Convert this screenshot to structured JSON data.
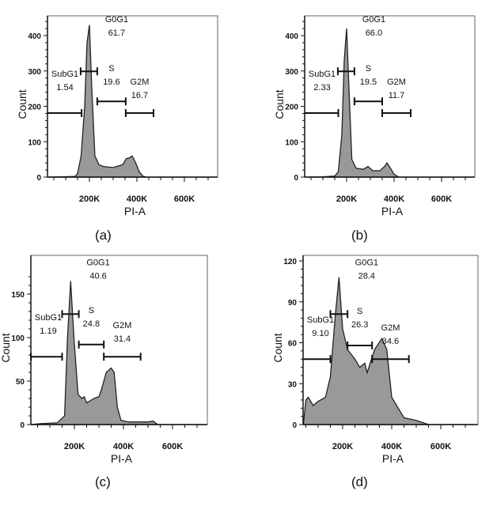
{
  "chart_data": [
    {
      "type": "area",
      "panel_label": "(a)",
      "xlabel": "PI-A",
      "ylabel": "Count",
      "xticks": [
        "200K",
        "400K",
        "600K"
      ],
      "yticks": [
        0,
        100,
        200,
        300,
        400
      ],
      "xlim": [
        23,
        740
      ],
      "ylim": [
        0,
        450
      ],
      "curve": {
        "x": [
          23,
          80,
          140,
          150,
          165,
          180,
          190,
          200,
          210,
          223,
          240,
          260,
          300,
          340,
          355,
          370,
          380,
          395,
          410,
          425,
          440,
          740
        ],
        "y": [
          0,
          1,
          2,
          10,
          60,
          200,
          380,
          430,
          250,
          60,
          35,
          30,
          27,
          35,
          52,
          55,
          60,
          40,
          15,
          3,
          0,
          0
        ]
      },
      "gates": [
        {
          "name": "SubG1",
          "value": "1.54",
          "range": [
            23,
            167
          ],
          "level": 181
        },
        {
          "name": "G0G1",
          "value": "61.7",
          "range": [
            163,
            233
          ],
          "level": 299
        },
        {
          "name": "S",
          "value": "19.6",
          "range": [
            233,
            353
          ],
          "level": 214
        },
        {
          "name": "G2M",
          "value": "16.7",
          "range": [
            353,
            470
          ],
          "level": 181
        }
      ]
    },
    {
      "type": "area",
      "panel_label": "(b)",
      "xlabel": "PI-A",
      "ylabel": "Count",
      "xticks": [
        "200K",
        "400K",
        "600K"
      ],
      "yticks": [
        0,
        100,
        200,
        300,
        400
      ],
      "xlim": [
        23,
        740
      ],
      "ylim": [
        0,
        450
      ],
      "curve": {
        "x": [
          23,
          100,
          150,
          165,
          180,
          190,
          200,
          210,
          222,
          240,
          270,
          290,
          310,
          340,
          360,
          370,
          385,
          400,
          420,
          740
        ],
        "y": [
          0,
          1,
          3,
          15,
          120,
          330,
          420,
          250,
          50,
          25,
          22,
          30,
          18,
          18,
          30,
          40,
          25,
          8,
          0,
          0
        ]
      },
      "gates": [
        {
          "name": "SubG1",
          "value": "2.33",
          "range": [
            23,
            165
          ],
          "level": 181
        },
        {
          "name": "G0G1",
          "value": "66.0",
          "range": [
            163,
            233
          ],
          "level": 299
        },
        {
          "name": "S",
          "value": "19.5",
          "range": [
            233,
            350
          ],
          "level": 214
        },
        {
          "name": "G2M",
          "value": "11.7",
          "range": [
            350,
            470
          ],
          "level": 181
        }
      ]
    },
    {
      "type": "area",
      "panel_label": "(c)",
      "xlabel": "PI-A",
      "ylabel": "Count",
      "xticks": [
        "200K",
        "400K",
        "600K"
      ],
      "yticks": [
        0,
        50,
        100,
        150
      ],
      "xlim": [
        23,
        740
      ],
      "ylim": [
        0,
        170
      ],
      "curve": {
        "x": [
          23,
          60,
          130,
          160,
          172,
          185,
          198,
          215,
          230,
          240,
          250,
          280,
          300,
          310,
          330,
          350,
          362,
          375,
          390,
          420,
          500,
          520,
          540,
          740
        ],
        "y": [
          0,
          1,
          2,
          10,
          100,
          165,
          100,
          35,
          30,
          32,
          25,
          30,
          32,
          40,
          60,
          65,
          60,
          20,
          5,
          3,
          3,
          4,
          0,
          0
        ]
      },
      "gates": [
        {
          "name": "SubG1",
          "value": "1.19",
          "range": [
            23,
            150
          ],
          "level": 78
        },
        {
          "name": "G0G1",
          "value": "40.6",
          "range": [
            150,
            218
          ],
          "level": 127
        },
        {
          "name": "S",
          "value": "24.8",
          "range": [
            218,
            320
          ],
          "level": 92
        },
        {
          "name": "G2M",
          "value": "31.4",
          "range": [
            320,
            470
          ],
          "level": 78
        }
      ]
    },
    {
      "type": "area",
      "panel_label": "(d)",
      "xlabel": "PI-A",
      "ylabel": "Count",
      "xticks": [
        "200K",
        "400K",
        "600K"
      ],
      "yticks": [
        0,
        30,
        60,
        90,
        120
      ],
      "xlim": [
        23,
        740
      ],
      "ylim": [
        0,
        125
      ],
      "curve": {
        "x": [
          40,
          50,
          60,
          80,
          100,
          130,
          150,
          170,
          185,
          200,
          220,
          250,
          270,
          290,
          300,
          330,
          360,
          380,
          400,
          450,
          500,
          550,
          740
        ],
        "y": [
          0,
          18,
          20,
          14,
          17,
          20,
          35,
          80,
          108,
          70,
          55,
          48,
          42,
          45,
          38,
          55,
          63,
          55,
          20,
          5,
          3,
          0,
          0
        ]
      },
      "gates": [
        {
          "name": "SubG1",
          "value": "9.10",
          "range": [
            23,
            150
          ],
          "level": 48
        },
        {
          "name": "G0G1",
          "value": "28.4",
          "range": [
            150,
            220
          ],
          "level": 81
        },
        {
          "name": "S",
          "value": "26.3",
          "range": [
            220,
            320
          ],
          "level": 58
        },
        {
          "name": "G2M",
          "value": "34.6",
          "range": [
            320,
            470
          ],
          "level": 48
        }
      ]
    }
  ]
}
